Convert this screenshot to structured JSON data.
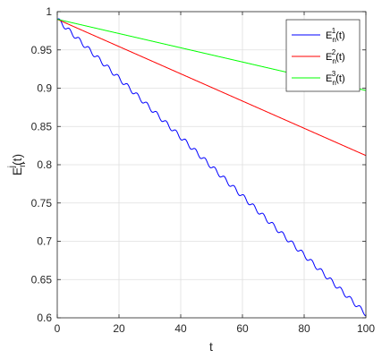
{
  "chart_data": {
    "type": "line",
    "xlabel": "t",
    "ylabel": {
      "base": "E",
      "sup": "j",
      "sub": "n",
      "suffix": "(t)"
    },
    "xlim": [
      0,
      100
    ],
    "ylim": [
      0.6,
      1.0
    ],
    "xticks": [
      0,
      20,
      40,
      60,
      80,
      100
    ],
    "yticks": [
      0.6,
      0.65,
      0.7,
      0.75,
      0.8,
      0.85,
      0.9,
      0.95,
      1
    ],
    "xtick_labels": [
      "0",
      "20",
      "40",
      "60",
      "80",
      "100"
    ],
    "ytick_labels": [
      "0.6",
      "0.65",
      "0.7",
      "0.75",
      "0.8",
      "0.85",
      "0.9",
      "0.95",
      "1"
    ],
    "grid": true,
    "legend_position": "top-right",
    "series": [
      {
        "name": {
          "base": "E",
          "sup": "1",
          "sub": "n",
          "suffix": "(t)"
        },
        "color": "#0000ff",
        "x": [
          0,
          100
        ],
        "y": [
          0.99,
          0.605
        ],
        "oscillation": {
          "amplitude": 0.003,
          "period": 3.14
        }
      },
      {
        "name": {
          "base": "E",
          "sup": "2",
          "sub": "n",
          "suffix": "(t)"
        },
        "color": "#ff0000",
        "x": [
          0,
          100
        ],
        "y": [
          0.99,
          0.812
        ]
      },
      {
        "name": {
          "base": "E",
          "sup": "3",
          "sub": "n",
          "suffix": "(t)"
        },
        "color": "#00ff00",
        "x": [
          0,
          100
        ],
        "y": [
          0.99,
          0.897
        ]
      }
    ]
  }
}
